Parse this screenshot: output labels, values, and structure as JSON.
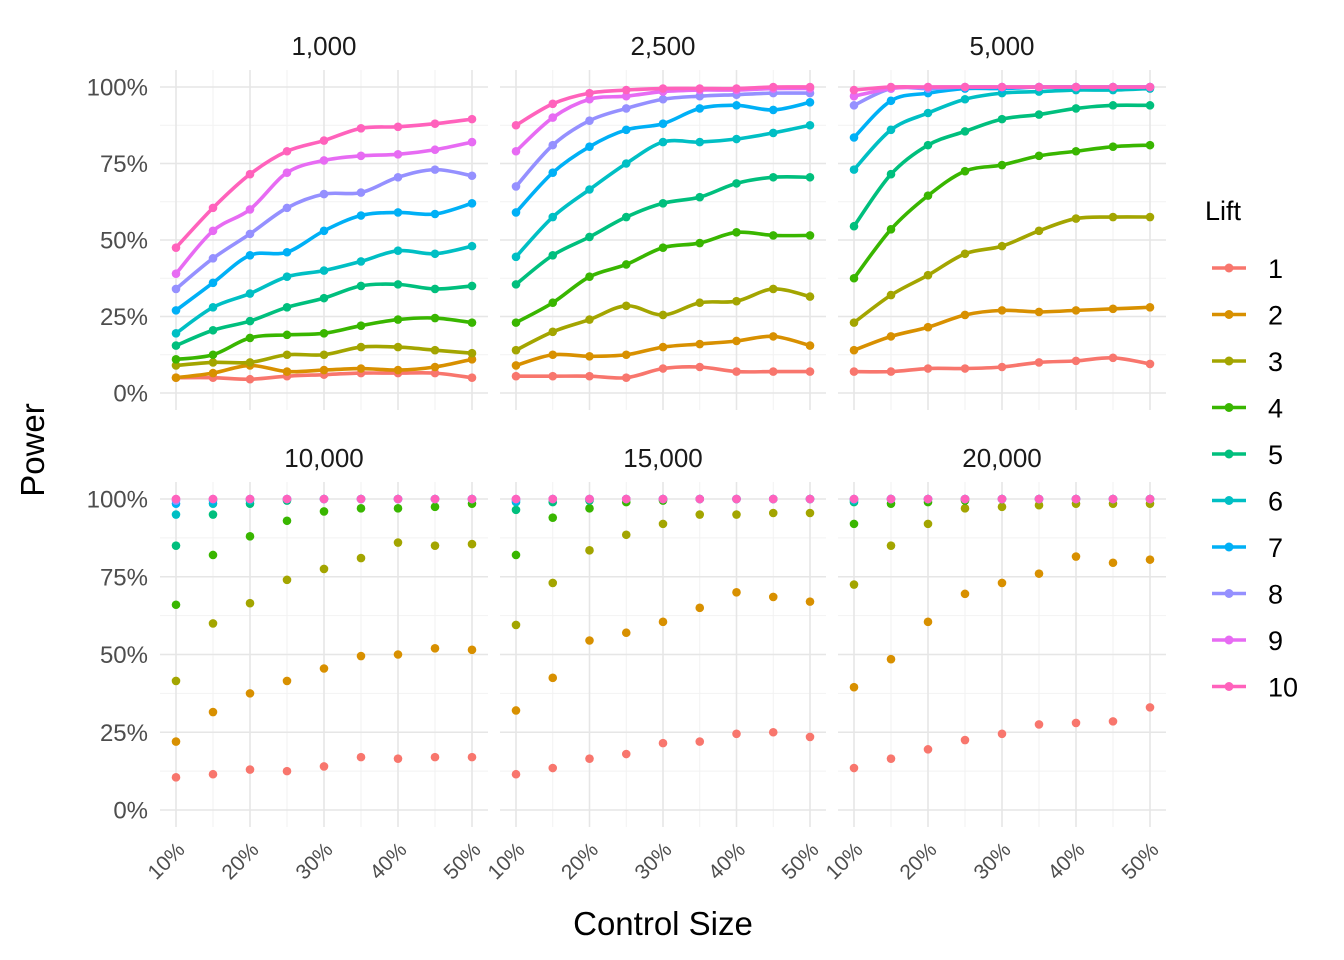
{
  "chart_data": {
    "type": "scatter",
    "xlabel": "Control Size",
    "ylabel": "Power",
    "legend_title": "Lift",
    "legend_position": "right",
    "x": [
      10,
      15,
      20,
      25,
      30,
      35,
      40,
      45,
      50
    ],
    "x_ticks": [
      "10%",
      "20%",
      "30%",
      "40%",
      "50%"
    ],
    "y_ticks": [
      "0%",
      "25%",
      "50%",
      "75%",
      "100%"
    ],
    "xlim": [
      10,
      50
    ],
    "ylim": [
      0,
      100
    ],
    "grid": true,
    "series_colors": [
      "#F8766D",
      "#D89000",
      "#A3A500",
      "#39B600",
      "#00BF7D",
      "#00BFC4",
      "#00B0F6",
      "#9590FF",
      "#E76BF3",
      "#FF62BC"
    ],
    "series_names": [
      "1",
      "2",
      "3",
      "4",
      "5",
      "6",
      "7",
      "8",
      "9",
      "10"
    ],
    "facets": [
      {
        "title": "1,000",
        "smooth": true,
        "points": [
          [
            5,
            5,
            4.5,
            5.5,
            6,
            6.5,
            6.5,
            6.5,
            5
          ],
          [
            5,
            6.5,
            9,
            7,
            7.5,
            8,
            7.5,
            8.5,
            11
          ],
          [
            9,
            10,
            10,
            12.5,
            12.5,
            15,
            15,
            14,
            13
          ],
          [
            11,
            12.5,
            18,
            19,
            19.5,
            22,
            24,
            24.5,
            23
          ],
          [
            15.5,
            20.5,
            23.5,
            28,
            31,
            35,
            35.5,
            34,
            35
          ],
          [
            19.5,
            28,
            32.5,
            38,
            40,
            43,
            46.5,
            45.5,
            48
          ],
          [
            27,
            36,
            45,
            46,
            53,
            58,
            59,
            58.5,
            62
          ],
          [
            34,
            44,
            52,
            60.5,
            65,
            65.5,
            70.5,
            73,
            71
          ],
          [
            39,
            53,
            60,
            72,
            76,
            77.5,
            78,
            79.5,
            82
          ],
          [
            47.5,
            60.5,
            71.5,
            79,
            82.5,
            86.5,
            87,
            88,
            89.5
          ]
        ]
      },
      {
        "title": "2,500",
        "smooth": true,
        "points": [
          [
            5.5,
            5.5,
            5.5,
            5,
            8,
            8.5,
            7,
            7,
            7
          ],
          [
            9,
            12.5,
            12,
            12.5,
            15,
            16,
            17,
            18.5,
            15.5
          ],
          [
            14,
            20,
            24,
            28.5,
            25.5,
            29.5,
            30,
            34,
            31.5
          ],
          [
            23,
            29.5,
            38,
            42,
            47.5,
            49,
            52.5,
            51.5,
            51.5
          ],
          [
            35.5,
            45,
            51,
            57.5,
            62,
            64,
            68.5,
            70.5,
            70.5
          ],
          [
            44.5,
            57.5,
            66.5,
            75,
            82,
            82,
            83,
            85,
            87.5
          ],
          [
            59,
            72,
            80.5,
            86,
            88,
            93,
            94,
            92.5,
            95
          ],
          [
            67.5,
            81,
            89,
            93,
            96,
            97,
            97.5,
            98,
            98
          ],
          [
            79,
            90,
            96,
            97,
            98.5,
            99,
            99,
            99.5,
            99.5
          ],
          [
            87.5,
            94.5,
            98,
            99,
            99.5,
            99.5,
            99.5,
            100,
            100
          ]
        ]
      },
      {
        "title": "5,000",
        "smooth": true,
        "points": [
          [
            7,
            7,
            8,
            8,
            8.5,
            10,
            10.5,
            11.5,
            9.5
          ],
          [
            14,
            18.5,
            21.5,
            25.5,
            27,
            26.5,
            27,
            27.5,
            28
          ],
          [
            23,
            32,
            38.5,
            45.5,
            48,
            53,
            57,
            57.5,
            57.5
          ],
          [
            37.5,
            53.5,
            64.5,
            72.5,
            74.5,
            77.5,
            79,
            80.5,
            81
          ],
          [
            54.5,
            71.5,
            81,
            85.5,
            89.5,
            91,
            93,
            94,
            94
          ],
          [
            73,
            86,
            91.5,
            96,
            98,
            98.5,
            99,
            99,
            99.5
          ],
          [
            83.5,
            95.5,
            98,
            99.5,
            99.5,
            100,
            100,
            100,
            100
          ],
          [
            94,
            99.5,
            99.5,
            100,
            100,
            100,
            100,
            100,
            100
          ],
          [
            97,
            99.5,
            100,
            100,
            100,
            100,
            100,
            100,
            100
          ],
          [
            99,
            100,
            100,
            100,
            100,
            100,
            100,
            100,
            100
          ]
        ]
      },
      {
        "title": "10,000",
        "smooth": false,
        "points": [
          [
            10.5,
            11.5,
            13,
            12.5,
            14,
            17,
            16.5,
            17,
            17
          ],
          [
            22,
            31.5,
            37.5,
            41.5,
            45.5,
            49.5,
            50,
            52,
            51.5
          ],
          [
            41.5,
            60,
            66.5,
            74,
            77.5,
            81,
            86,
            85,
            85.5
          ],
          [
            66,
            82,
            88,
            93,
            96,
            97,
            97,
            97.5,
            98.5
          ],
          [
            85,
            95,
            98.5,
            99.5,
            100,
            100,
            100,
            100,
            100
          ],
          [
            95,
            98.5,
            99.5,
            100,
            100,
            100,
            100,
            100,
            100
          ],
          [
            98.5,
            99.5,
            100,
            100,
            100,
            100,
            100,
            100,
            100
          ],
          [
            99.5,
            100,
            100,
            100,
            100,
            100,
            100,
            100,
            100
          ],
          [
            100,
            100,
            100,
            100,
            100,
            100,
            100,
            100,
            100
          ],
          [
            100,
            100,
            100,
            100,
            100,
            100,
            100,
            100,
            100
          ]
        ]
      },
      {
        "title": "15,000",
        "smooth": false,
        "points": [
          [
            11.5,
            13.5,
            16.5,
            18,
            21.5,
            22,
            24.5,
            25,
            23.5
          ],
          [
            32,
            42.5,
            54.5,
            57,
            60.5,
            65,
            70,
            68.5,
            67
          ],
          [
            59.5,
            73,
            83.5,
            88.5,
            92,
            95,
            95,
            95.5,
            95.5
          ],
          [
            82,
            94,
            97,
            99,
            99.5,
            100,
            100,
            100,
            100
          ],
          [
            96.5,
            99,
            99.5,
            100,
            100,
            100,
            100,
            100,
            100
          ],
          [
            99,
            100,
            100,
            100,
            100,
            100,
            100,
            100,
            100
          ],
          [
            99.5,
            100,
            100,
            100,
            100,
            100,
            100,
            100,
            100
          ],
          [
            100,
            100,
            100,
            100,
            100,
            100,
            100,
            100,
            100
          ],
          [
            100,
            100,
            100,
            100,
            100,
            100,
            100,
            100,
            100
          ],
          [
            100,
            100,
            100,
            100,
            100,
            100,
            100,
            100,
            100
          ]
        ]
      },
      {
        "title": "20,000",
        "smooth": false,
        "points": [
          [
            13.5,
            16.5,
            19.5,
            22.5,
            24.5,
            27.5,
            28,
            28.5,
            33
          ],
          [
            39.5,
            48.5,
            60.5,
            69.5,
            73,
            76,
            81.5,
            79.5,
            80.5
          ],
          [
            72.5,
            85,
            92,
            97,
            97.5,
            98,
            98.5,
            98.5,
            98.5
          ],
          [
            92,
            98.5,
            99,
            99.5,
            100,
            100,
            100,
            100,
            100
          ],
          [
            99,
            100,
            100,
            100,
            100,
            100,
            100,
            100,
            100
          ],
          [
            99.5,
            100,
            100,
            100,
            100,
            100,
            100,
            100,
            100
          ],
          [
            100,
            100,
            100,
            100,
            100,
            100,
            100,
            100,
            100
          ],
          [
            100,
            100,
            100,
            100,
            100,
            100,
            100,
            100,
            100
          ],
          [
            100,
            100,
            100,
            100,
            100,
            100,
            100,
            100,
            100
          ],
          [
            100,
            100,
            100,
            100,
            100,
            100,
            100,
            100,
            100
          ]
        ]
      }
    ]
  }
}
